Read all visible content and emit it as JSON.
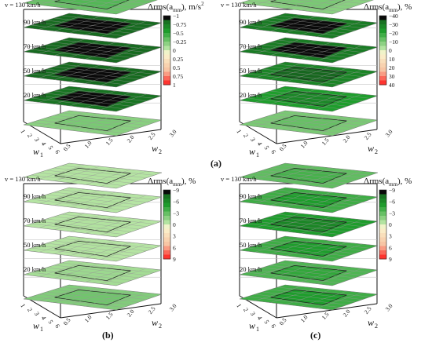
{
  "chart_data": [
    {
      "id": "a",
      "type": "heatmap",
      "subtype": "stacked 3D contour surfaces",
      "panel_label": "(a)",
      "colorbar_title": "Δrms(a",
      "colorbar_sub": "mm",
      "colorbar_suffix": "), m/s",
      "colorbar_sup": "2",
      "colorbar_ticks": [
        "−1",
        "−0.75",
        "−0.5",
        "−0.25",
        "0",
        "0.25",
        "0.5",
        "0.75",
        "1"
      ],
      "colorbar_range": [
        -1,
        1
      ],
      "x_axis": {
        "label": "w",
        "sub": "1",
        "ticks": [
          "1",
          "2",
          "3",
          "4",
          "5",
          "6"
        ]
      },
      "y_axis": {
        "label": "w",
        "sub": "2",
        "ticks": [
          "0.5",
          "1.0",
          "1.5",
          "2.0",
          "2.5",
          "3.0"
        ]
      },
      "top_label": "v = 130 km/h",
      "layers": [
        {
          "label": "90 km/h",
          "value": -0.85
        },
        {
          "label": "70 km/h",
          "value": -0.85
        },
        {
          "label": "50 km/h",
          "value": -0.85
        },
        {
          "label": "20 km/h",
          "value": -0.8
        },
        {
          "label": "",
          "value": -0.2
        }
      ],
      "top_layer_value": -0.3
    },
    {
      "id": "a2",
      "type": "heatmap",
      "subtype": "stacked 3D contour surfaces",
      "panel_label": "",
      "colorbar_title": "Δrms(a",
      "colorbar_sub": "mm",
      "colorbar_suffix": "), %",
      "colorbar_sup": "",
      "colorbar_ticks": [
        "−40",
        "−30",
        "−20",
        "−10",
        "0",
        "10",
        "20",
        "30",
        "40"
      ],
      "colorbar_range": [
        -40,
        40
      ],
      "x_axis": {
        "label": "w",
        "sub": "1",
        "ticks": [
          "1",
          "2",
          "3",
          "4",
          "5",
          "6"
        ]
      },
      "y_axis": {
        "label": "w",
        "sub": "2",
        "ticks": [
          "0.5",
          "1.0",
          "1.5",
          "2.0",
          "2.5",
          "3.0"
        ]
      },
      "top_label": "v = 130 km/h",
      "layers": [
        {
          "label": "90 km/h",
          "value": -30
        },
        {
          "label": "70 km/h",
          "value": -30
        },
        {
          "label": "50 km/h",
          "value": -28
        },
        {
          "label": "20 km/h",
          "value": -22
        },
        {
          "label": "",
          "value": -10
        }
      ],
      "top_layer_value": -8
    },
    {
      "id": "b",
      "type": "heatmap",
      "subtype": "stacked 3D contour surfaces",
      "panel_label": "(b)",
      "colorbar_title": "Δrms(a",
      "colorbar_sub": "mm",
      "colorbar_suffix": "), %",
      "colorbar_sup": "",
      "colorbar_ticks": [
        "−9",
        "−6",
        "−3",
        "0",
        "3",
        "6",
        "9"
      ],
      "colorbar_range": [
        -9,
        9
      ],
      "x_axis": {
        "label": "w",
        "sub": "1",
        "ticks": [
          "1",
          "2",
          "3",
          "4",
          "5",
          "6"
        ]
      },
      "y_axis": {
        "label": "w",
        "sub": "2",
        "ticks": [
          "0.5",
          "1.0",
          "1.5",
          "2.0",
          "2.5",
          "3.0"
        ]
      },
      "top_label": "v = 130 km/h",
      "layers": [
        {
          "label": "90 km/h",
          "value": -0.5
        },
        {
          "label": "70 km/h",
          "value": -0.5
        },
        {
          "label": "50 km/h",
          "value": -0.5
        },
        {
          "label": "20 km/h",
          "value": -1
        },
        {
          "label": "",
          "value": -2
        }
      ],
      "top_layer_value": -0.5
    },
    {
      "id": "c",
      "type": "heatmap",
      "subtype": "stacked 3D contour surfaces",
      "panel_label": "(c)",
      "colorbar_title": "Δrms(a",
      "colorbar_sub": "mm",
      "colorbar_suffix": "), %",
      "colorbar_sup": "",
      "colorbar_ticks": [
        "−9",
        "−6",
        "−3",
        "0",
        "3",
        "6",
        "9"
      ],
      "colorbar_range": [
        -9,
        9
      ],
      "x_axis": {
        "label": "w",
        "sub": "1",
        "ticks": [
          "1",
          "2",
          "3",
          "4",
          "5",
          "6"
        ]
      },
      "y_axis": {
        "label": "w",
        "sub": "2",
        "ticks": [
          "0.5",
          "1.0",
          "1.5",
          "2.0",
          "2.5",
          "3.0"
        ]
      },
      "top_label": "v = 130 km/h",
      "layers": [
        {
          "label": "90 km/h",
          "value": -4
        },
        {
          "label": "70 km/h",
          "value": -5
        },
        {
          "label": "50 km/h",
          "value": -4
        },
        {
          "label": "20 km/h",
          "value": -3.5
        },
        {
          "label": "",
          "value": -4
        }
      ],
      "top_layer_value": -3
    }
  ],
  "colors": {
    "negative_end": "#0a0a0a",
    "green_dark": "#1e9e2c",
    "green_light": "#c6ecb0",
    "neutral": "#fbf5cf",
    "salmon": "#f7c1a0",
    "positive_end": "#ff1a1a",
    "frame": "#111111"
  }
}
